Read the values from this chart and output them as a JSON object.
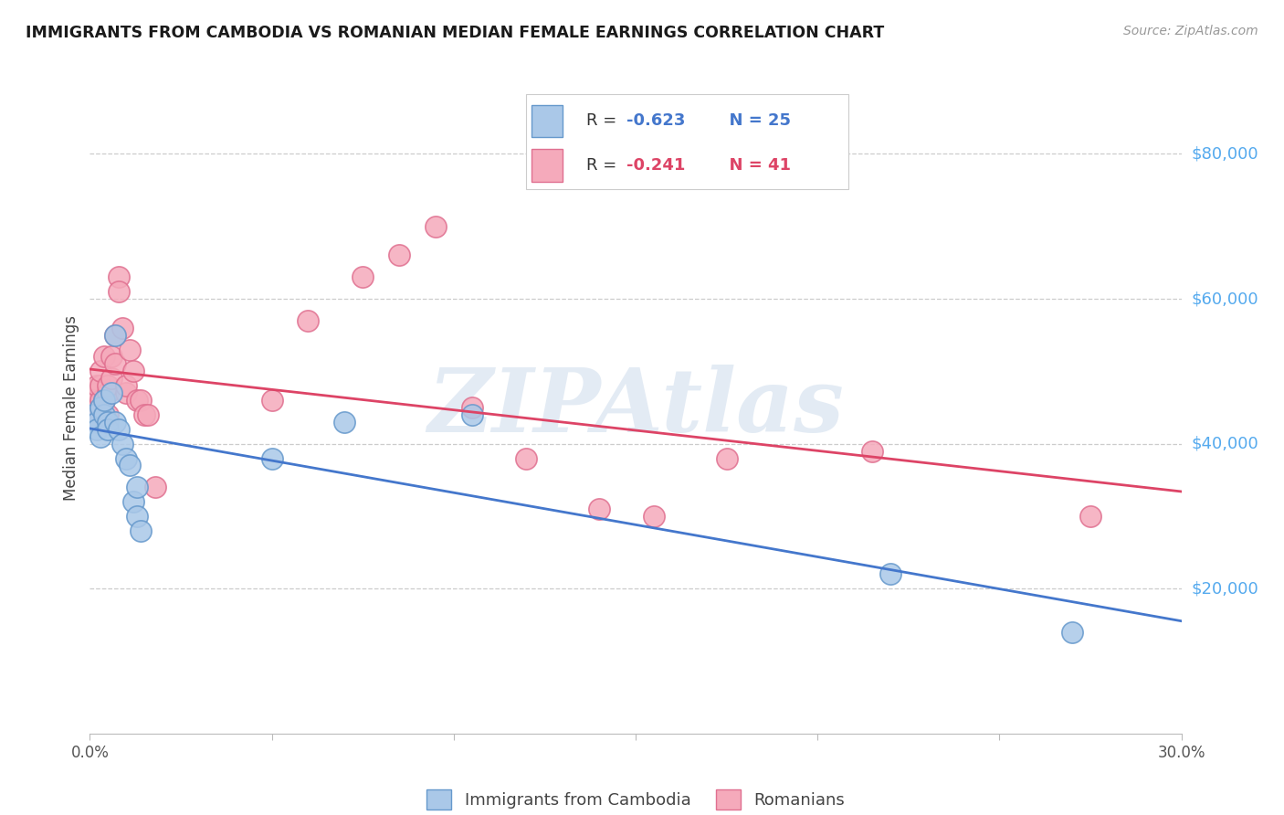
{
  "title": "IMMIGRANTS FROM CAMBODIA VS ROMANIAN MEDIAN FEMALE EARNINGS CORRELATION CHART",
  "source": "Source: ZipAtlas.com",
  "ylabel": "Median Female Earnings",
  "y_ticks": [
    20000,
    40000,
    60000,
    80000
  ],
  "y_tick_labels": [
    "$20,000",
    "$40,000",
    "$60,000",
    "$80,000"
  ],
  "xlim": [
    0.0,
    0.3
  ],
  "ylim": [
    0,
    90000
  ],
  "series1_label": "Immigrants from Cambodia",
  "series2_label": "Romanians",
  "series1_face": "#aac8e8",
  "series2_face": "#f5aabb",
  "series1_edge": "#6699cc",
  "series2_edge": "#e07090",
  "trendline1_color": "#4477cc",
  "trendline2_color": "#dd4466",
  "watermark": "ZIPAtlas",
  "watermark_color": "#c8d8ea",
  "grid_color": "#cccccc",
  "title_color": "#1a1a1a",
  "source_color": "#999999",
  "ytick_color": "#55aaee",
  "xtick_color": "#555555",
  "legend_r1_black": "R = ",
  "legend_r1_blue": "-0.623",
  "legend_n1_blue": "  N = 25",
  "legend_r2_black": "R = ",
  "legend_r2_pink": "-0.241",
  "legend_n2_pink": "  N = 41",
  "cambodia_x": [
    0.001,
    0.002,
    0.002,
    0.003,
    0.003,
    0.004,
    0.004,
    0.005,
    0.005,
    0.006,
    0.007,
    0.007,
    0.008,
    0.009,
    0.01,
    0.011,
    0.012,
    0.013,
    0.013,
    0.014,
    0.05,
    0.07,
    0.105,
    0.22,
    0.27
  ],
  "cambodia_y": [
    44000,
    43000,
    42000,
    45000,
    41000,
    44000,
    46000,
    43000,
    42000,
    47000,
    43000,
    55000,
    42000,
    40000,
    38000,
    37000,
    32000,
    34000,
    30000,
    28000,
    38000,
    43000,
    44000,
    22000,
    14000
  ],
  "romanian_x": [
    0.001,
    0.001,
    0.002,
    0.002,
    0.002,
    0.003,
    0.003,
    0.003,
    0.004,
    0.004,
    0.005,
    0.005,
    0.005,
    0.006,
    0.006,
    0.007,
    0.007,
    0.008,
    0.008,
    0.009,
    0.01,
    0.01,
    0.011,
    0.012,
    0.013,
    0.014,
    0.015,
    0.016,
    0.018,
    0.05,
    0.06,
    0.075,
    0.085,
    0.095,
    0.105,
    0.12,
    0.14,
    0.155,
    0.175,
    0.215,
    0.275
  ],
  "romanian_y": [
    44000,
    46000,
    45000,
    47000,
    48000,
    46000,
    48000,
    50000,
    46000,
    52000,
    44000,
    47000,
    48000,
    49000,
    52000,
    51000,
    55000,
    63000,
    61000,
    56000,
    47000,
    48000,
    53000,
    50000,
    46000,
    46000,
    44000,
    44000,
    34000,
    46000,
    57000,
    63000,
    66000,
    70000,
    45000,
    38000,
    31000,
    30000,
    38000,
    39000,
    30000
  ]
}
